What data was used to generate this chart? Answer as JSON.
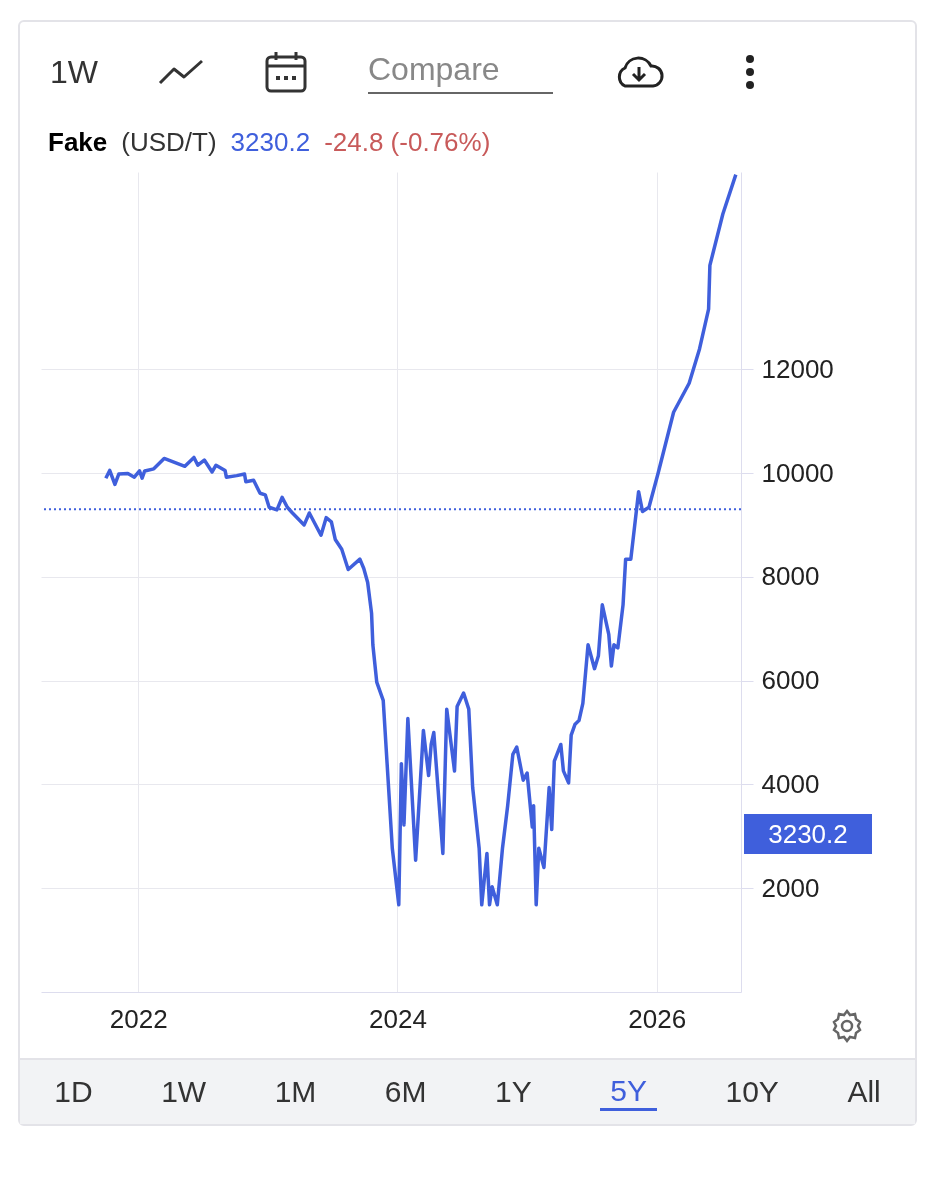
{
  "chart_data": {
    "type": "line",
    "title": "Fake",
    "annotations": [
      "(USD/T)",
      "3230.2",
      "-24.8 (-0.76%)",
      "3230.2",
      "1W",
      "Compare",
      "1D",
      "1W",
      "1M",
      "6M",
      "1Y",
      "5Y",
      "10Y",
      "All"
    ],
    "xlim": [
      2021.25,
      2026.65
    ],
    "xticks": [
      2022,
      2024,
      2026
    ],
    "ylim": [
      0,
      15800
    ],
    "yticks": [
      2000,
      4000,
      6000,
      8000,
      10000,
      12000
    ],
    "grid": true,
    "ref_lines": [
      {
        "axis": "y",
        "value": 9300,
        "color": "#3f5fdc",
        "line_style": "dotted"
      }
    ],
    "series": [
      {
        "color": "#3f5fdc",
        "x": [
          2021.75,
          2021.78,
          2021.82,
          2021.85,
          2021.92,
          2021.97,
          2022.01,
          2022.03,
          2022.05,
          2022.12,
          2022.2,
          2022.36,
          2022.43,
          2022.46,
          2022.51,
          2022.57,
          2022.6,
          2022.67,
          2022.68,
          2022.76,
          2022.82,
          2022.83,
          2022.89,
          2022.94,
          2022.98,
          2023.01,
          2023.07,
          2023.11,
          2023.15,
          2023.19,
          2023.28,
          2023.32,
          2023.41,
          2023.45,
          2023.49,
          2023.52,
          2023.57,
          2023.62,
          2023.71,
          2023.74,
          2023.77,
          2023.8,
          2023.81,
          2023.84,
          2023.89,
          2023.96,
          2024.01,
          2024.03,
          2024.05,
          2024.08,
          2024.14,
          2024.2,
          2024.24,
          2024.26,
          2024.28,
          2024.32,
          2024.35,
          2024.38,
          2024.44,
          2024.46,
          2024.51,
          2024.55,
          2024.58,
          2024.63,
          2024.65,
          2024.69,
          2024.71,
          2024.73,
          2024.77,
          2024.81,
          2024.85,
          2024.89,
          2024.92,
          2024.97,
          2025.0,
          2025.04,
          2025.05,
          2025.07,
          2025.09,
          2025.13,
          2025.17,
          2025.19,
          2025.21,
          2025.26,
          2025.28,
          2025.32,
          2025.34,
          2025.37,
          2025.4,
          2025.43,
          2025.47,
          2025.52,
          2025.55,
          2025.58,
          2025.63,
          2025.65,
          2025.67,
          2025.7,
          2025.74,
          2025.76,
          2025.8,
          2025.86,
          2025.89,
          2025.94,
          2026.01,
          2026.13,
          2026.25,
          2026.33,
          2026.4,
          2026.41,
          2026.51,
          2026.61
        ],
        "values": [
          9900,
          10050,
          9780,
          9980,
          9990,
          9920,
          10040,
          9900,
          10040,
          10080,
          10280,
          10130,
          10300,
          10150,
          10250,
          10020,
          10150,
          10050,
          9920,
          9950,
          9980,
          9830,
          9860,
          9610,
          9580,
          9340,
          9290,
          9530,
          9340,
          9230,
          9000,
          9230,
          8800,
          9140,
          9060,
          8720,
          8530,
          8140,
          8340,
          8160,
          7890,
          7300,
          6690,
          5970,
          5620,
          2770,
          1680,
          4400,
          3220,
          5270,
          2540,
          5040,
          4170,
          4770,
          5000,
          3680,
          2670,
          5450,
          4260,
          5500,
          5760,
          5450,
          3940,
          2770,
          1680,
          2670,
          1680,
          2030,
          1680,
          2770,
          3590,
          4580,
          4720,
          4080,
          4220,
          3180,
          3590,
          1680,
          2770,
          2400,
          3940,
          3130,
          4450,
          4770,
          4260,
          4030,
          4950,
          5160,
          5230,
          5560,
          6690,
          6230,
          6480,
          7460,
          6890,
          6280,
          6690,
          6630,
          7460,
          8340,
          8340,
          9640,
          9260,
          9340,
          9990,
          11170,
          11730,
          12390,
          13160,
          14000,
          14990,
          15750
        ]
      }
    ]
  }
}
